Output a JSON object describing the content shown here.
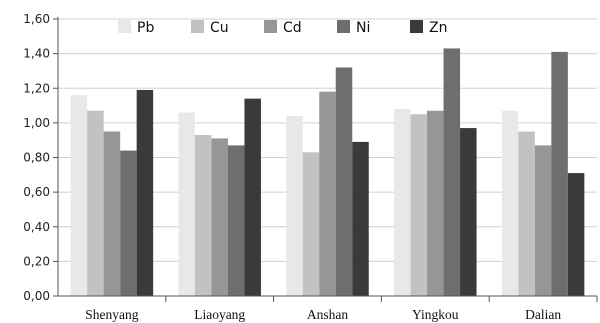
{
  "chart_data": {
    "type": "bar",
    "categories": [
      "Shenyang",
      "Liaoyang",
      "Anshan",
      "Yingkou",
      "Dalian"
    ],
    "series": [
      {
        "name": "Pb",
        "color": "#e8e8e8",
        "values": [
          1.16,
          1.06,
          1.04,
          1.08,
          1.07
        ]
      },
      {
        "name": "Cu",
        "color": "#c2c2c2",
        "values": [
          1.07,
          0.93,
          0.83,
          1.05,
          0.95
        ]
      },
      {
        "name": "Cd",
        "color": "#969696",
        "values": [
          0.95,
          0.91,
          1.18,
          1.07,
          0.87
        ]
      },
      {
        "name": "Ni",
        "color": "#6e6e6e",
        "values": [
          0.84,
          0.87,
          1.32,
          1.43,
          1.41
        ]
      },
      {
        "name": "Zn",
        "color": "#3a3a3a",
        "values": [
          1.19,
          1.14,
          0.89,
          0.97,
          0.71
        ]
      }
    ],
    "ylim": [
      0,
      1.6
    ],
    "yticks": [
      "0,00",
      "0,20",
      "0,40",
      "0,60",
      "0,80",
      "1,00",
      "1,20",
      "1,40",
      "1,60"
    ],
    "grid": true,
    "legend_position": "top"
  }
}
